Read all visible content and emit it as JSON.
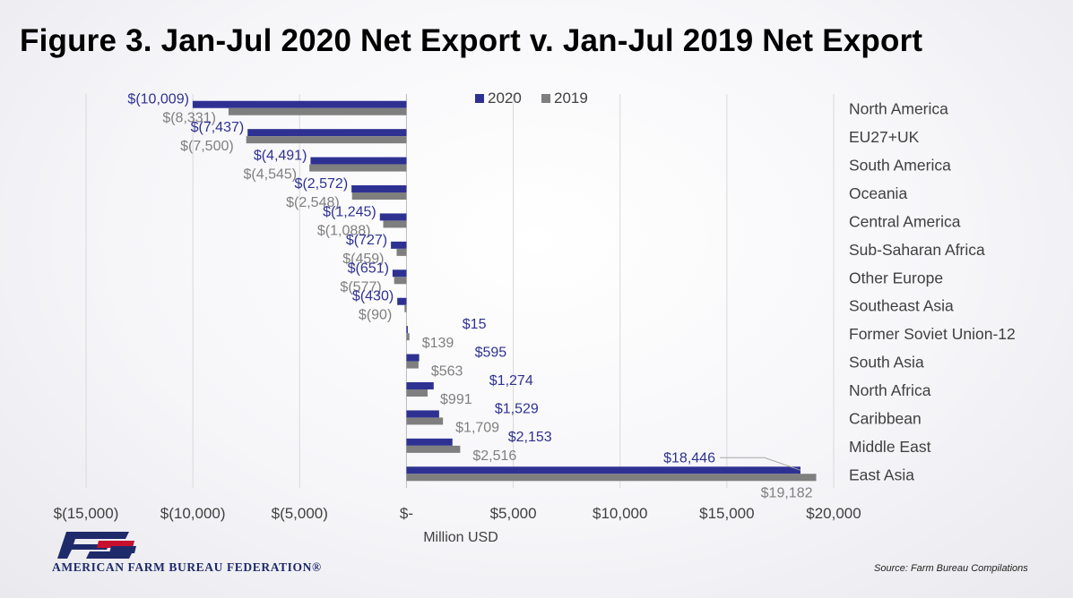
{
  "title": "Figure 3. Jan-Jul 2020 Net Export v. Jan-Jul 2019 Net Export",
  "logo": {
    "org_name": "AMERICAN FARM BUREAU FEDERATION®",
    "mark": "FB"
  },
  "source": "Source: Farm Bureau Compilations",
  "colors": {
    "2020": "#2e3192",
    "2019": "#7f7f7f"
  },
  "chart_data": {
    "type": "bar",
    "orientation": "horizontal",
    "categories": [
      "North America",
      "EU27+UK",
      "South America",
      "Oceania",
      "Central America",
      "Sub-Saharan Africa",
      "Other Europe",
      "Southeast Asia",
      "Former Soviet Union-12",
      "South Asia",
      "North Africa",
      "Caribbean",
      "Middle East",
      "East Asia"
    ],
    "series": [
      {
        "name": "2020",
        "values": [
          -10009,
          -7437,
          -4491,
          -2572,
          -1245,
          -727,
          -651,
          -430,
          15,
          595,
          1274,
          1529,
          2153,
          18446
        ],
        "labels": [
          "$(10,009)",
          "$(7,437)",
          "$(4,491)",
          "$(2,572)",
          "$(1,245)",
          "$(727)",
          "$(651)",
          "$(430)",
          "$15",
          "$595",
          "$1,274",
          "$1,529",
          "$2,153",
          "$18,446"
        ]
      },
      {
        "name": "2019",
        "values": [
          -8331,
          -7500,
          -4545,
          -2548,
          -1088,
          -459,
          -577,
          -90,
          139,
          563,
          991,
          1709,
          2516,
          19182
        ],
        "labels": [
          "$(8,331)",
          "$(7,500)",
          "$(4,545)",
          "$(2,548)",
          "$(1,088)",
          "$(459)",
          "$(577)",
          "$(90)",
          "$139",
          "$563",
          "$991",
          "$1,709",
          "$2,516",
          "$19,182"
        ]
      }
    ],
    "xlim": [
      -15000,
      20000
    ],
    "xticks": [
      -15000,
      -10000,
      -5000,
      0,
      5000,
      10000,
      15000,
      20000
    ],
    "xtick_labels": [
      "$(15,000)",
      "$(10,000)",
      "$(5,000)",
      "$-",
      "$5,000",
      "$10,000",
      "$15,000",
      "$20,000"
    ],
    "xlabel": "Million USD",
    "ylabel": "",
    "grid": true,
    "legend_position": "top"
  }
}
